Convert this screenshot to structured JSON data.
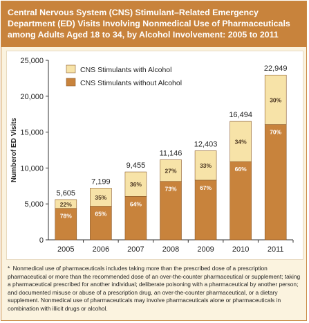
{
  "header": {
    "title_lines": [
      "Central Nervous System (CNS) Stimulant–Related Emergency",
      "Department (ED) Visits Involving Nonmedical Use of Pharmaceuticals",
      "among Adults Aged 18 to 34, by Alcohol Involvement: 2005 to 2011"
    ]
  },
  "colors": {
    "title_bar": "#c8833c",
    "with_alcohol": "#f7e3a8",
    "without_alcohol": "#c8833c",
    "background": "#fbf3df"
  },
  "chart_data": {
    "type": "bar",
    "stacked": true,
    "title": "Central Nervous System (CNS) Stimulant–Related Emergency Department (ED) Visits Involving Nonmedical Use of Pharmaceuticals among Adults Aged 18 to 34, by Alcohol Involvement: 2005 to 2011",
    "xlabel": "",
    "ylabel": "Numberof ED Visits",
    "ylim": [
      0,
      25000
    ],
    "yticks": [
      0,
      5000,
      10000,
      15000,
      20000,
      25000
    ],
    "ytick_labels": [
      "0",
      "5,000",
      "10,000",
      "15,000",
      "20,000",
      "25,000"
    ],
    "categories": [
      "2005",
      "2006",
      "2007",
      "2008",
      "2009",
      "2010",
      "2011"
    ],
    "totals": [
      5605,
      7199,
      9455,
      11146,
      12403,
      16494,
      22949
    ],
    "total_labels": [
      "5,605",
      "7,199",
      "9,455",
      "11,146",
      "12,403",
      "16,494",
      "22,949"
    ],
    "series": [
      {
        "name": "CNS Stimulants without Alcohol",
        "color": "#c8833c",
        "percent_labels": [
          "78%",
          "65%",
          "64%",
          "73%",
          "67%",
          "66%",
          "70%"
        ],
        "percents": [
          78,
          65,
          64,
          73,
          67,
          66,
          70
        ]
      },
      {
        "name": "CNS Stimulants with Alcohol",
        "color": "#f7e3a8",
        "percent_labels": [
          "22%",
          "35%",
          "36%",
          "27%",
          "33%",
          "34%",
          "30%"
        ],
        "percents": [
          22,
          35,
          36,
          27,
          33,
          34,
          30
        ]
      }
    ],
    "legend_position": "top-left",
    "grid": false
  },
  "footnote": {
    "marker": "*",
    "text": "Nonmedical use of pharmaceuticals includes taking more than the prescribed dose of a prescription pharmaceutical or more than the recommended dose of an over-the-counter pharmaceutical or supplement; taking a pharmaceutical prescribed for another individual; deliberate poisoning with a pharmaceutical by another person; and documented misuse or abuse of a prescription drug, an over-the-counter pharmaceutical, or a dietary supplement. Nonmedical use of pharmaceuticals may involve pharmaceuticals alone or pharmaceuticals in combination with illicit drugs or alcohol."
  }
}
